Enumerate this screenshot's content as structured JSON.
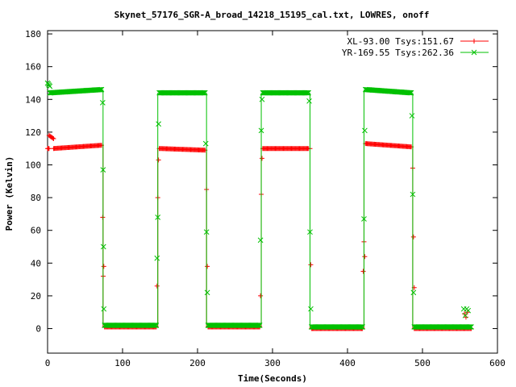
{
  "chart_data": {
    "type": "line",
    "title": "Skynet_57176_SGR-A_broad_14218_15195_cal.txt, LOWRES, onoff",
    "xlabel": "Time(Seconds)",
    "ylabel": "Power (Kelvin)",
    "xlim": [
      0,
      600
    ],
    "ylim": [
      -15,
      182
    ],
    "xticks": [
      0,
      100,
      200,
      300,
      400,
      500,
      600
    ],
    "yticks": [
      0,
      20,
      40,
      60,
      80,
      100,
      120,
      140,
      160,
      180
    ],
    "grid": false,
    "legend_position": "top-right",
    "series": [
      {
        "name": "XL-93.00 Tsys:151.67",
        "color": "#ff0000",
        "marker": "plus",
        "segments": [
          {
            "x0": 0,
            "x1": 2,
            "y0": 110,
            "y1": 110
          },
          {
            "x0": 2,
            "x1": 8,
            "y0": 118,
            "y1": 116
          },
          {
            "x0": 8,
            "x1": 72,
            "y0": 110,
            "y1": 112
          },
          {
            "x0": 76,
            "x1": 145,
            "y0": 1,
            "y1": 1
          },
          {
            "x0": 149,
            "x1": 210,
            "y0": 110,
            "y1": 109
          },
          {
            "x0": 214,
            "x1": 283,
            "y0": 1,
            "y1": 1
          },
          {
            "x0": 287,
            "x1": 348,
            "y0": 110,
            "y1": 110
          },
          {
            "x0": 352,
            "x1": 420,
            "y0": 0,
            "y1": 0
          },
          {
            "x0": 424,
            "x1": 485,
            "y0": 113,
            "y1": 111
          },
          {
            "x0": 489,
            "x1": 565,
            "y0": 0,
            "y1": 0
          }
        ],
        "transitions": [
          {
            "x": 74,
            "from": 112,
            "to": 1
          },
          {
            "x": 147,
            "from": 1,
            "to": 110
          },
          {
            "x": 212,
            "from": 109,
            "to": 1
          },
          {
            "x": 285,
            "from": 1,
            "to": 110
          },
          {
            "x": 350,
            "from": 110,
            "to": 0
          },
          {
            "x": 422,
            "from": 0,
            "to": 113
          },
          {
            "x": 487,
            "from": 111,
            "to": 0
          }
        ],
        "spikes": [
          {
            "x": 73.5,
            "y": 68
          },
          {
            "x": 74.2,
            "y": 32
          },
          {
            "x": 75,
            "y": 38
          },
          {
            "x": 146,
            "y": 26
          },
          {
            "x": 147,
            "y": 80
          },
          {
            "x": 148,
            "y": 103
          },
          {
            "x": 212,
            "y": 85
          },
          {
            "x": 213,
            "y": 38
          },
          {
            "x": 284,
            "y": 20
          },
          {
            "x": 285,
            "y": 82
          },
          {
            "x": 286,
            "y": 104
          },
          {
            "x": 350,
            "y": 110
          },
          {
            "x": 351,
            "y": 39
          },
          {
            "x": 421,
            "y": 35
          },
          {
            "x": 422,
            "y": 53
          },
          {
            "x": 423,
            "y": 44
          },
          {
            "x": 487,
            "y": 98
          },
          {
            "x": 488,
            "y": 56
          },
          {
            "x": 489,
            "y": 25
          },
          {
            "x": 556,
            "y": 9
          },
          {
            "x": 558,
            "y": 7
          },
          {
            "x": 560,
            "y": 10
          }
        ]
      },
      {
        "name": "YR-169.55 Tsys:262.36",
        "color": "#00c000",
        "marker": "cross",
        "segments": [
          {
            "x0": 0,
            "x1": 3,
            "y0": 150,
            "y1": 148
          },
          {
            "x0": 3,
            "x1": 72,
            "y0": 144,
            "y1": 146
          },
          {
            "x0": 76,
            "x1": 145,
            "y0": 2,
            "y1": 2
          },
          {
            "x0": 149,
            "x1": 210,
            "y0": 144,
            "y1": 144
          },
          {
            "x0": 214,
            "x1": 283,
            "y0": 2,
            "y1": 2
          },
          {
            "x0": 287,
            "x1": 348,
            "y0": 144,
            "y1": 144
          },
          {
            "x0": 352,
            "x1": 420,
            "y0": 1,
            "y1": 1
          },
          {
            "x0": 424,
            "x1": 485,
            "y0": 146,
            "y1": 144
          },
          {
            "x0": 489,
            "x1": 565,
            "y0": 1,
            "y1": 1
          }
        ],
        "transitions": [
          {
            "x": 74,
            "from": 146,
            "to": 2
          },
          {
            "x": 147,
            "from": 2,
            "to": 144
          },
          {
            "x": 212,
            "from": 144,
            "to": 2
          },
          {
            "x": 285,
            "from": 2,
            "to": 144
          },
          {
            "x": 350,
            "from": 144,
            "to": 1
          },
          {
            "x": 422,
            "from": 1,
            "to": 146
          },
          {
            "x": 487,
            "from": 144,
            "to": 1
          }
        ],
        "spikes": [
          {
            "x": 73.5,
            "y": 138
          },
          {
            "x": 74,
            "y": 97
          },
          {
            "x": 74.5,
            "y": 50
          },
          {
            "x": 75,
            "y": 12
          },
          {
            "x": 146,
            "y": 43
          },
          {
            "x": 147,
            "y": 68
          },
          {
            "x": 148,
            "y": 125
          },
          {
            "x": 211,
            "y": 113
          },
          {
            "x": 212,
            "y": 59
          },
          {
            "x": 213,
            "y": 22
          },
          {
            "x": 284,
            "y": 54
          },
          {
            "x": 285,
            "y": 121
          },
          {
            "x": 286,
            "y": 140
          },
          {
            "x": 349,
            "y": 139
          },
          {
            "x": 350,
            "y": 59
          },
          {
            "x": 351,
            "y": 12
          },
          {
            "x": 422,
            "y": 67
          },
          {
            "x": 423,
            "y": 121
          },
          {
            "x": 486,
            "y": 130
          },
          {
            "x": 487,
            "y": 82
          },
          {
            "x": 488,
            "y": 22
          },
          {
            "x": 555,
            "y": 12
          },
          {
            "x": 557,
            "y": 8
          },
          {
            "x": 559,
            "y": 12
          },
          {
            "x": 561,
            "y": 11
          }
        ]
      }
    ]
  }
}
